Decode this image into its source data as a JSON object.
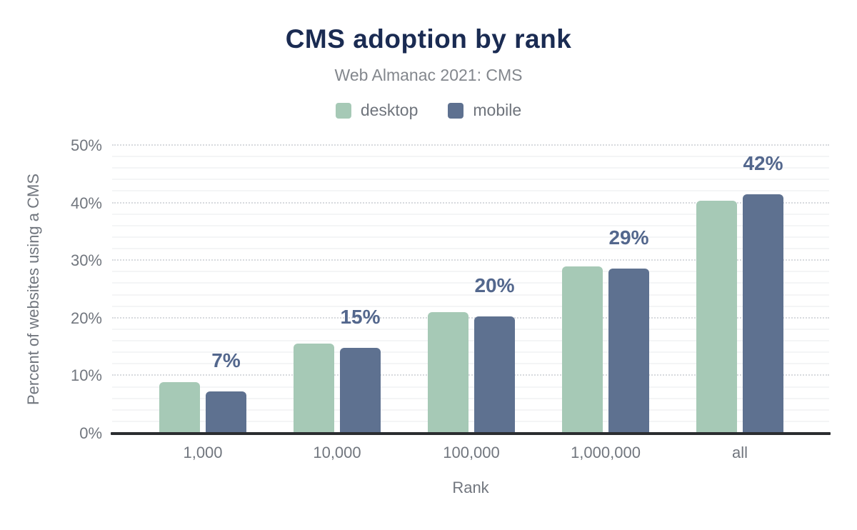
{
  "header": {
    "title": "CMS adoption by rank",
    "subtitle": "Web Almanac 2021: CMS"
  },
  "chart_data": {
    "type": "bar",
    "title": "CMS adoption by rank",
    "subtitle": "Web Almanac 2021: CMS",
    "categories": [
      "1,000",
      "10,000",
      "100,000",
      "1,000,000",
      "all"
    ],
    "series": [
      {
        "name": "desktop",
        "color": "#a6c9b6",
        "values": [
          8.9,
          15.6,
          21.1,
          29.0,
          40.4
        ]
      },
      {
        "name": "mobile",
        "color": "#5e7190",
        "values": [
          7.3,
          14.9,
          20.3,
          28.7,
          41.6
        ]
      }
    ],
    "data_labels": [
      "7%",
      "15%",
      "20%",
      "29%",
      "42%"
    ],
    "data_labels_series": "mobile",
    "xlabel": "Rank",
    "ylabel": "Percent of websites using a CMS",
    "ylim": [
      0,
      50
    ],
    "yticks": [
      {
        "value": 0,
        "label": "0%"
      },
      {
        "value": 10,
        "label": "10%"
      },
      {
        "value": 20,
        "label": "20%"
      },
      {
        "value": 30,
        "label": "30%"
      },
      {
        "value": 40,
        "label": "40%"
      },
      {
        "value": 50,
        "label": "50%"
      }
    ],
    "grid": {
      "major_step": 10,
      "minor_step": 2,
      "major_style": "dotted",
      "minor_style": "solid"
    },
    "legend_position": "top",
    "colors": {
      "background": "#ffffff",
      "title": "#1a2b52",
      "subtitle": "#83878d",
      "axis_text": "#71767e",
      "data_label": "#53678d",
      "axis_line": "#2b2d30",
      "grid_major": "#d7dade",
      "grid_minor": "#f4f5f6"
    }
  }
}
